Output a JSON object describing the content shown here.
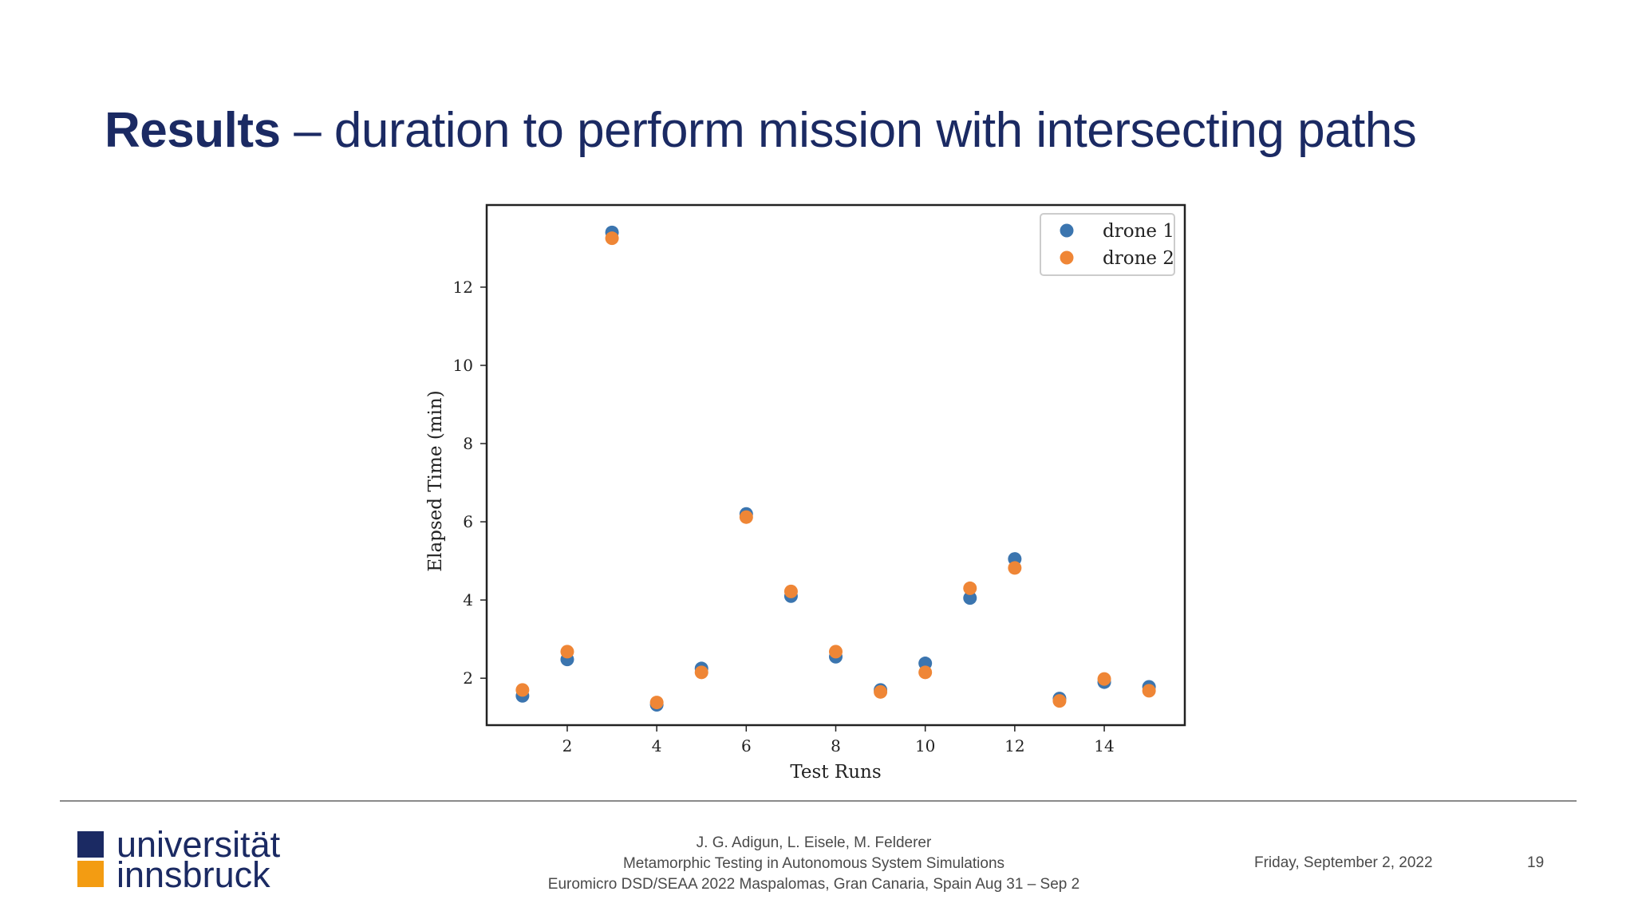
{
  "slide": {
    "title_bold": "Results",
    "title_rest": " – duration to perform mission with intersecting paths"
  },
  "chart_data": {
    "type": "scatter",
    "xlabel": "Test Runs",
    "ylabel": "Elapsed Time (min)",
    "xlim": [
      0.2,
      15.8
    ],
    "ylim": [
      0.8,
      14.1
    ],
    "xticks": [
      2,
      4,
      6,
      8,
      10,
      12,
      14
    ],
    "yticks": [
      2,
      4,
      6,
      8,
      10,
      12
    ],
    "legend_position": "top-right",
    "x": [
      1,
      2,
      3,
      4,
      5,
      6,
      7,
      8,
      9,
      10,
      11,
      12,
      13,
      14,
      15
    ],
    "series": [
      {
        "name": "drone 1",
        "color": "#3b75af",
        "values": [
          1.55,
          2.48,
          13.4,
          1.32,
          2.25,
          6.2,
          4.1,
          2.55,
          1.7,
          2.38,
          4.05,
          5.05,
          1.48,
          1.9,
          1.78
        ]
      },
      {
        "name": "drone 2",
        "color": "#ef8636",
        "values": [
          1.7,
          2.68,
          13.25,
          1.38,
          2.15,
          6.12,
          4.22,
          2.68,
          1.65,
          2.15,
          4.3,
          4.82,
          1.42,
          1.98,
          1.68
        ]
      }
    ]
  },
  "footer": {
    "logo_line1": "universität",
    "logo_line2": "innsbruck",
    "authors": "J. G. Adigun, L. Eisele, M. Felderer",
    "talk_title": "Metamorphic Testing in Autonomous System Simulations",
    "venue": "Euromicro DSD/SEAA 2022 Maspalomas, Gran Canaria, Spain Aug 31 – Sep 2",
    "date": "Friday, September 2, 2022",
    "page_number": "19"
  }
}
